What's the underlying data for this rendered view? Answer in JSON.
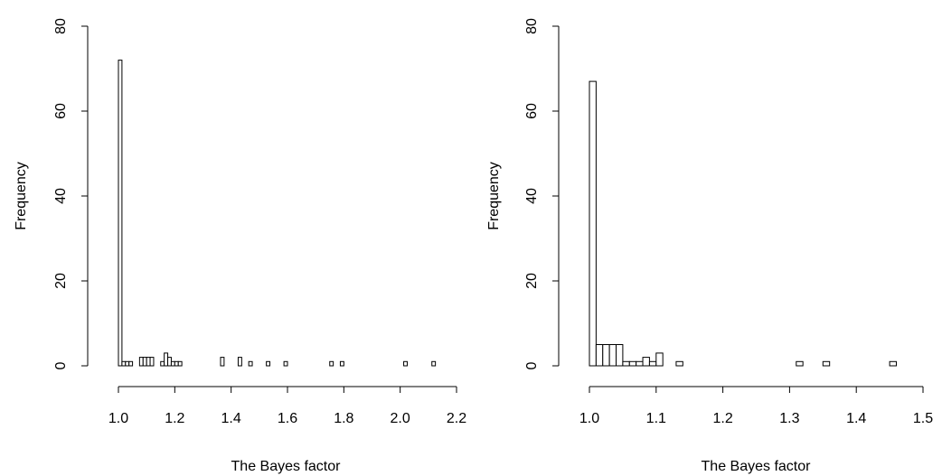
{
  "chart_data": [
    {
      "type": "bar",
      "subtype": "histogram",
      "xlabel": "The Bayes factor",
      "ylabel": "Frequency",
      "xlim": [
        1.0,
        2.2
      ],
      "ylim": [
        0,
        80
      ],
      "xticks": [
        "1.0",
        "1.2",
        "1.4",
        "1.6",
        "1.8",
        "2.0",
        "2.2"
      ],
      "yticks": [
        "0",
        "20",
        "40",
        "60",
        "80"
      ],
      "bin_width": 0.0125,
      "bins": [
        {
          "x0": 1.0,
          "x1": 1.0125,
          "count": 72
        },
        {
          "x0": 1.0125,
          "x1": 1.025,
          "count": 1
        },
        {
          "x0": 1.025,
          "x1": 1.0375,
          "count": 1
        },
        {
          "x0": 1.0375,
          "x1": 1.05,
          "count": 1
        },
        {
          "x0": 1.075,
          "x1": 1.0875,
          "count": 2
        },
        {
          "x0": 1.0875,
          "x1": 1.1,
          "count": 2
        },
        {
          "x0": 1.1,
          "x1": 1.1125,
          "count": 2
        },
        {
          "x0": 1.1125,
          "x1": 1.125,
          "count": 2
        },
        {
          "x0": 1.15,
          "x1": 1.1625,
          "count": 1
        },
        {
          "x0": 1.1625,
          "x1": 1.175,
          "count": 3
        },
        {
          "x0": 1.175,
          "x1": 1.1875,
          "count": 2
        },
        {
          "x0": 1.1875,
          "x1": 1.2,
          "count": 1
        },
        {
          "x0": 1.2,
          "x1": 1.2125,
          "count": 1
        },
        {
          "x0": 1.2125,
          "x1": 1.225,
          "count": 1
        },
        {
          "x0": 1.3625,
          "x1": 1.375,
          "count": 2
        },
        {
          "x0": 1.425,
          "x1": 1.4375,
          "count": 2
        },
        {
          "x0": 1.4625,
          "x1": 1.475,
          "count": 1
        },
        {
          "x0": 1.525,
          "x1": 1.5375,
          "count": 1
        },
        {
          "x0": 1.5875,
          "x1": 1.6,
          "count": 1
        },
        {
          "x0": 1.75,
          "x1": 1.7625,
          "count": 1
        },
        {
          "x0": 1.7875,
          "x1": 1.8,
          "count": 1
        },
        {
          "x0": 2.0125,
          "x1": 2.025,
          "count": 1
        },
        {
          "x0": 2.1125,
          "x1": 2.125,
          "count": 1
        }
      ]
    },
    {
      "type": "bar",
      "subtype": "histogram",
      "xlabel": "The Bayes factor",
      "ylabel": "Frequency",
      "xlim": [
        1.0,
        1.5
      ],
      "ylim": [
        0,
        80
      ],
      "xticks": [
        "1.0",
        "1.1",
        "1.2",
        "1.3",
        "1.4",
        "1.5"
      ],
      "yticks": [
        "0",
        "20",
        "40",
        "60",
        "80"
      ],
      "bin_width": 0.01,
      "bins": [
        {
          "x0": 1.0,
          "x1": 1.01,
          "count": 67
        },
        {
          "x0": 1.01,
          "x1": 1.02,
          "count": 5
        },
        {
          "x0": 1.02,
          "x1": 1.03,
          "count": 5
        },
        {
          "x0": 1.03,
          "x1": 1.04,
          "count": 5
        },
        {
          "x0": 1.04,
          "x1": 1.05,
          "count": 5
        },
        {
          "x0": 1.05,
          "x1": 1.06,
          "count": 1
        },
        {
          "x0": 1.06,
          "x1": 1.07,
          "count": 1
        },
        {
          "x0": 1.07,
          "x1": 1.08,
          "count": 1
        },
        {
          "x0": 1.08,
          "x1": 1.09,
          "count": 2
        },
        {
          "x0": 1.09,
          "x1": 1.1,
          "count": 1
        },
        {
          "x0": 1.1,
          "x1": 1.11,
          "count": 3
        },
        {
          "x0": 1.13,
          "x1": 1.14,
          "count": 1
        },
        {
          "x0": 1.31,
          "x1": 1.32,
          "count": 1
        },
        {
          "x0": 1.35,
          "x1": 1.36,
          "count": 1
        },
        {
          "x0": 1.45,
          "x1": 1.46,
          "count": 1
        }
      ]
    }
  ]
}
